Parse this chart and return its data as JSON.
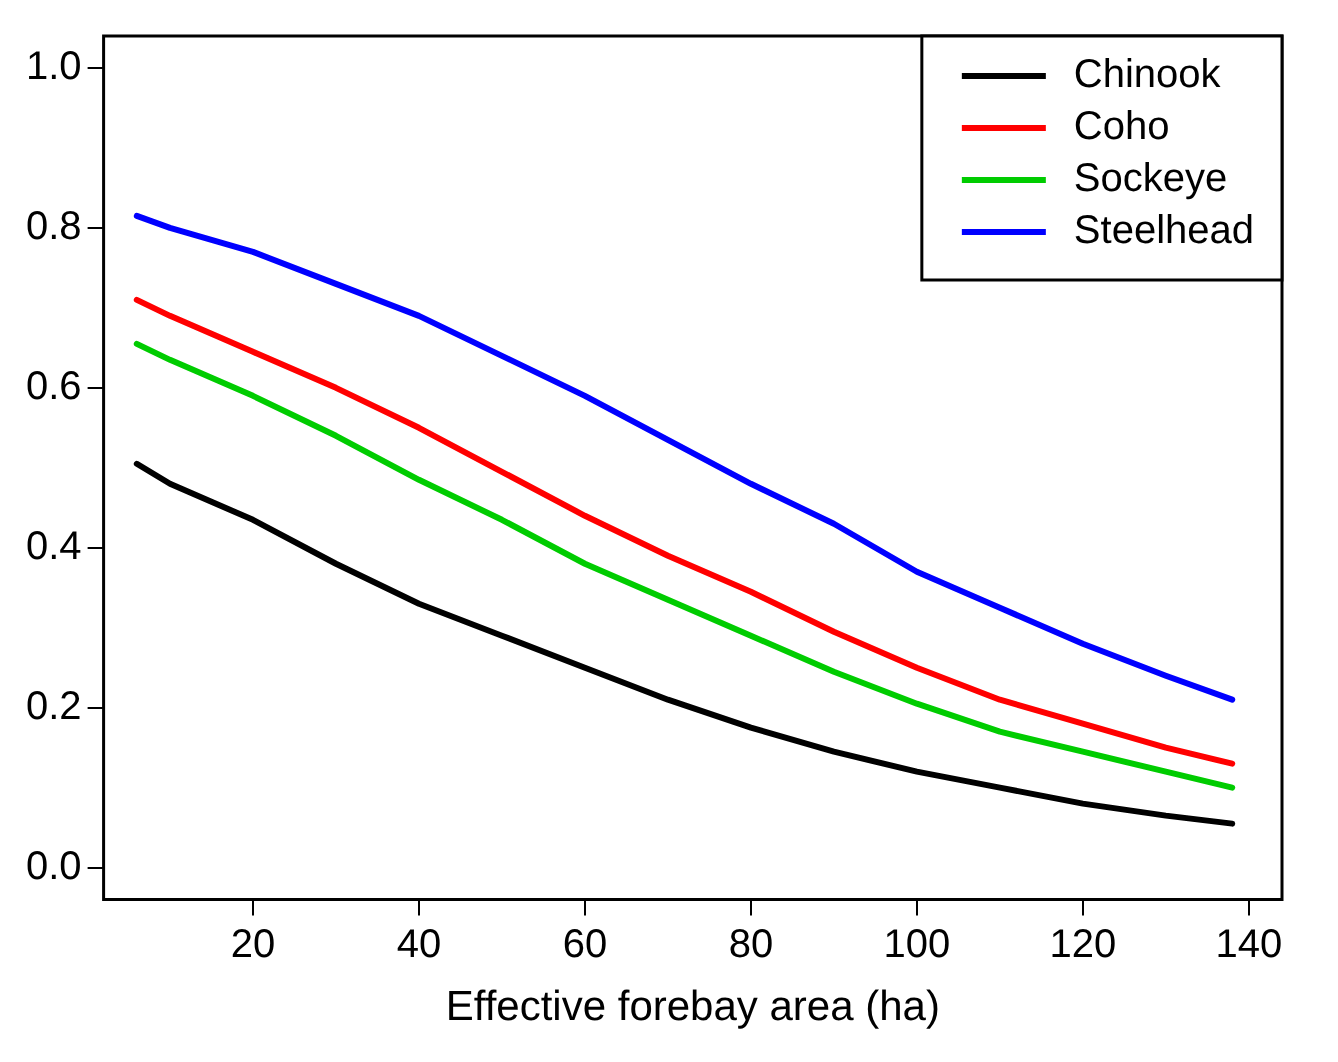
{
  "chart_data": {
    "type": "line",
    "xlabel": "Effective forebay area (ha)",
    "x": [
      6,
      10,
      20,
      30,
      40,
      50,
      60,
      70,
      80,
      90,
      100,
      110,
      120,
      130,
      138
    ],
    "series": [
      {
        "name": "Chinook",
        "color": "#000000",
        "values": [
          0.505,
          0.48,
          0.435,
          0.38,
          0.33,
          0.29,
          0.25,
          0.21,
          0.175,
          0.145,
          0.12,
          0.1,
          0.08,
          0.065,
          0.055
        ]
      },
      {
        "name": "Coho",
        "color": "#ff0000",
        "values": [
          0.71,
          0.69,
          0.645,
          0.6,
          0.55,
          0.495,
          0.44,
          0.39,
          0.345,
          0.295,
          0.25,
          0.21,
          0.18,
          0.15,
          0.13
        ]
      },
      {
        "name": "Sockeye",
        "color": "#00cc00",
        "values": [
          0.655,
          0.635,
          0.59,
          0.54,
          0.485,
          0.435,
          0.38,
          0.335,
          0.29,
          0.245,
          0.205,
          0.17,
          0.145,
          0.12,
          0.1
        ]
      },
      {
        "name": "Steelhead",
        "color": "#0000ff",
        "values": [
          0.815,
          0.8,
          0.77,
          0.73,
          0.69,
          0.64,
          0.59,
          0.535,
          0.48,
          0.43,
          0.37,
          0.325,
          0.28,
          0.24,
          0.21
        ]
      }
    ],
    "xlim": [
      2,
      144
    ],
    "xticks": [
      20,
      40,
      60,
      80,
      100,
      120,
      140
    ],
    "ylim": [
      -0.04,
      1.04
    ],
    "yticks": [
      {
        "value": 0,
        "label": "0.0"
      },
      {
        "value": 0.2,
        "label": "0.2"
      },
      {
        "value": 0.4,
        "label": "0.4"
      },
      {
        "value": 0.6,
        "label": "0.6"
      },
      {
        "value": 0.8,
        "label": "0.8"
      },
      {
        "value": 1,
        "label": "1.0"
      }
    ],
    "grid": false,
    "legend": "top right",
    "marker": "none",
    "line_style": "solid"
  }
}
